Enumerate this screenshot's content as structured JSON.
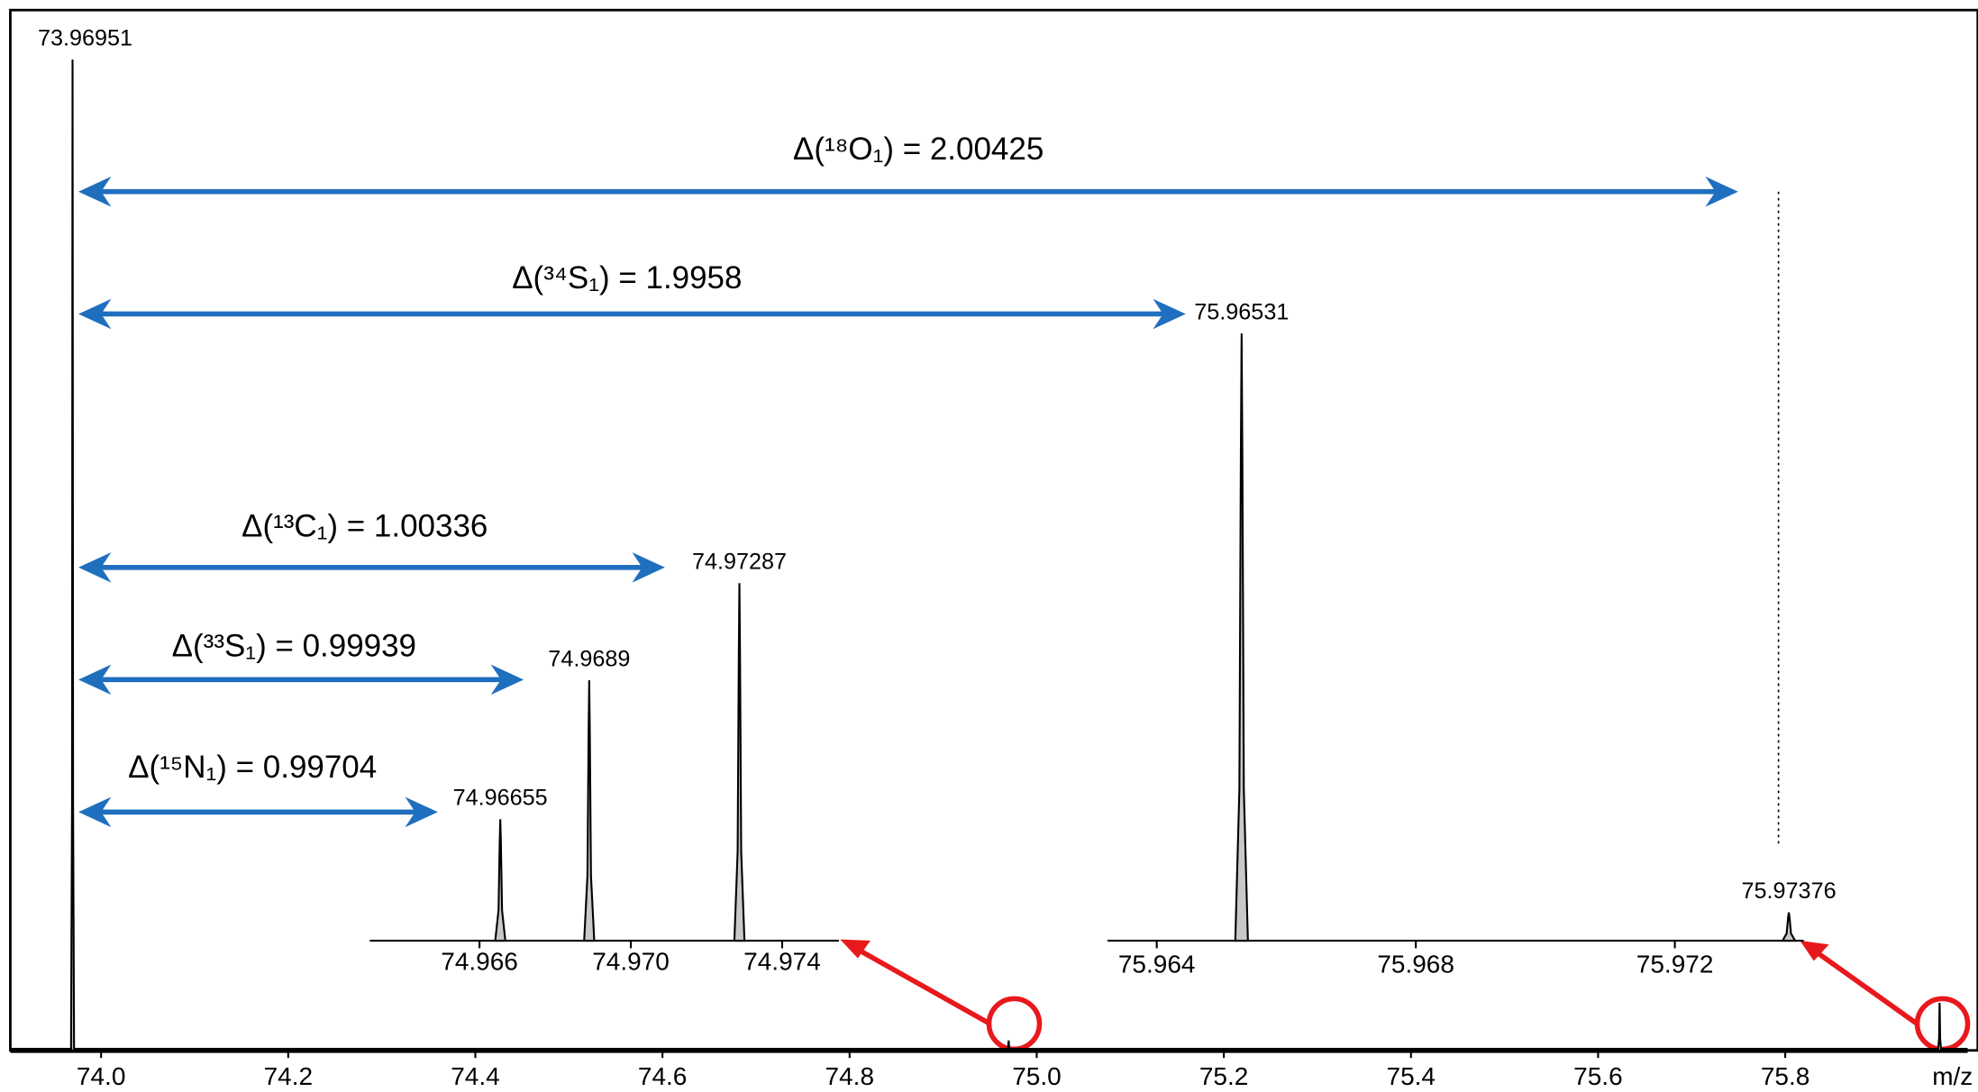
{
  "chart_data": {
    "type": "spectrum",
    "x_label": "m/z",
    "xlim": [
      73.903,
      75.995
    ],
    "xticks": [
      {
        "value": 74.0,
        "label": "74.0"
      },
      74.2,
      74.4,
      74.6,
      74.8,
      {
        "value": 75.0,
        "label": "75.0"
      },
      75.2,
      75.4,
      75.6,
      75.8
    ],
    "ylim": [
      0,
      105
    ],
    "x": [
      73.96951,
      74.97,
      75.965
    ],
    "values": [
      100,
      1,
      4.8
    ],
    "insets": [
      {
        "type": "spectrum",
        "xlim": [
          74.9631,
          74.9755
        ],
        "xticks": [
          74.966,
          {
            "value": 74.97,
            "label": "74.970"
          },
          74.974
        ],
        "ylim": [
          0,
          5
        ],
        "x": [
          74.96655,
          74.9689,
          74.97287
        ],
        "values": [
          0.9,
          1.93,
          2.65
        ]
      },
      {
        "type": "spectrum",
        "xlim": [
          75.96324,
          75.97399
        ],
        "xticks": [
          75.964,
          75.968,
          75.972
        ],
        "ylim": [
          0,
          5
        ],
        "x": [
          75.96531,
          75.97376
        ],
        "values": [
          4.5,
          0.21
        ]
      }
    ],
    "annotations": [
      "Δ(¹⁸O₁) = 2.00425",
      "Δ(³⁴S₁) = 1.9958",
      "Δ(¹³C₁) = 1.00336",
      "Δ(³³S₁) = 0.99939",
      "Δ(¹⁵N₁) = 0.99704"
    ]
  }
}
